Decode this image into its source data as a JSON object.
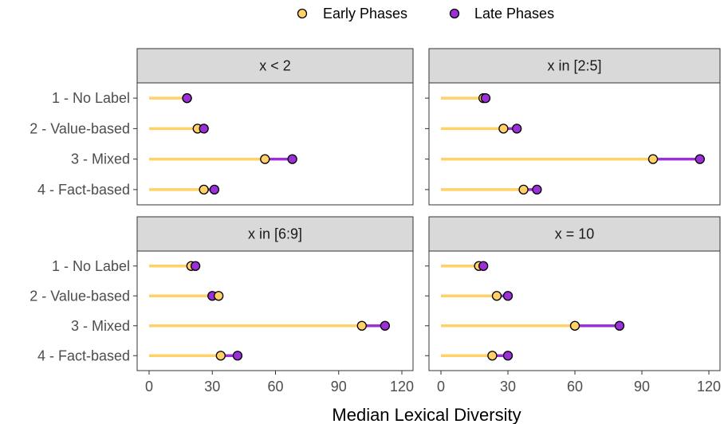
{
  "chart_data": {
    "type": "dumbbell",
    "legend": {
      "position": "top",
      "entries": [
        {
          "name": "Early Phases",
          "color": "#ffd166",
          "key": "early"
        },
        {
          "name": "Late Phases",
          "color": "#9b30d9",
          "key": "late"
        }
      ]
    },
    "x_label": "Median Lexical Diversity",
    "x_ticks": [
      0,
      30,
      60,
      90,
      120
    ],
    "x_range": [
      0,
      120
    ],
    "categories": [
      "1 - No Label",
      "2 - Value-based",
      "3 - Mixed",
      "4 - Fact-based"
    ],
    "panels": [
      {
        "title": "x < 2",
        "early": [
          18,
          23,
          55,
          26
        ],
        "late": [
          18,
          26,
          68,
          31
        ]
      },
      {
        "title": "x in [2:5]",
        "early": [
          19,
          28,
          95,
          37
        ],
        "late": [
          20,
          34,
          116,
          43
        ]
      },
      {
        "title": "x in [6:9]",
        "early": [
          20,
          33,
          101,
          34
        ],
        "late": [
          22,
          30,
          112,
          42
        ]
      },
      {
        "title": "x = 10",
        "early": [
          17,
          25,
          60,
          23
        ],
        "late": [
          19,
          30,
          80,
          30
        ]
      }
    ],
    "grid": false
  }
}
